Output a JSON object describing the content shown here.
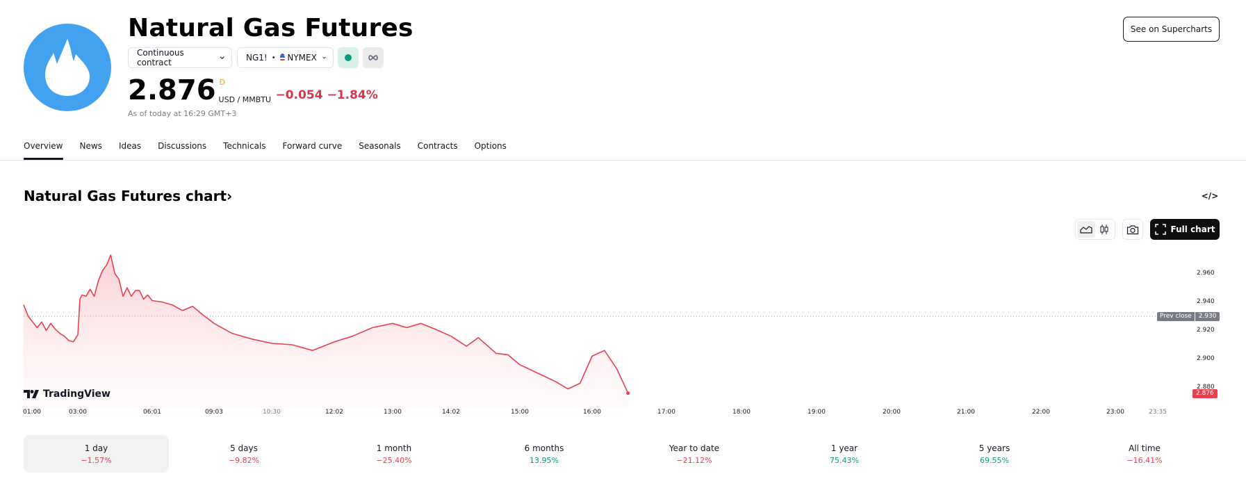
{
  "header": {
    "logo_icon": "flame-icon",
    "logo_color": "#42a2f0",
    "title": "Natural Gas Futures",
    "contract_select": "Continuous contract",
    "symbol": "NG1!",
    "separator": "•",
    "exchange": "NYMEX",
    "exchange_flag": "us-flag-icon",
    "status_icon": "market-open-dot",
    "infinity_icon": "infinity-icon",
    "supercharts_button": "See on Supercharts"
  },
  "quote": {
    "price": "2.876",
    "delay_marker": "D",
    "unit": "USD / MMBTU",
    "change": "−0.054",
    "change_percent": "−1.84%",
    "as_of": "As of today at 16:29 GMT+3",
    "change_color": "#d1394b"
  },
  "tabs": [
    {
      "label": "Overview",
      "active": true
    },
    {
      "label": "News"
    },
    {
      "label": "Ideas"
    },
    {
      "label": "Discussions"
    },
    {
      "label": "Technicals"
    },
    {
      "label": "Forward curve"
    },
    {
      "label": "Seasonals"
    },
    {
      "label": "Contracts"
    },
    {
      "label": "Options"
    }
  ],
  "chart_section": {
    "title": "Natural Gas Futures chart",
    "title_arrow": "›",
    "embed_icon": "</>",
    "area_style_icon": "area-chart-icon",
    "candles_style_icon": "candlestick-icon",
    "snapshot_icon": "camera-icon",
    "full_chart_button": "Full chart",
    "watermark": "TradingView",
    "prev_close_label": "Prev close",
    "prev_close_value": "2.930",
    "last_value": "2.876"
  },
  "chart_data": {
    "type": "area",
    "title": "Natural Gas Futures chart",
    "xlabel": "",
    "ylabel": "USD / MMBTU",
    "x_tick_labels": [
      "01:00",
      "03:00",
      "06:01",
      "09:03",
      "10:30",
      "12:02",
      "13:00",
      "14:02",
      "15:00",
      "16:00",
      "17:00",
      "18:00",
      "19:00",
      "20:00",
      "21:00",
      "22:00",
      "23:00",
      "23:35"
    ],
    "y_tick_labels": [
      "2.960",
      "2.940",
      "2.920",
      "2.900",
      "2.880"
    ],
    "ylim": [
      2.865,
      2.978
    ],
    "grid": false,
    "legend": "none",
    "reference_line": {
      "label": "Prev close",
      "value": 2.93,
      "style": "dotted"
    },
    "last_value_label": {
      "value": 2.876,
      "color": "#e8404f"
    },
    "line_color": "#e8404f",
    "series": [
      {
        "name": "NG1!",
        "x": [
          "01:00",
          "01:10",
          "01:20",
          "01:30",
          "01:40",
          "01:50",
          "02:00",
          "02:10",
          "02:20",
          "02:30",
          "02:40",
          "02:50",
          "03:00",
          "03:05",
          "03:10",
          "03:20",
          "03:30",
          "03:40",
          "03:50",
          "04:00",
          "04:10",
          "04:20",
          "04:30",
          "04:40",
          "04:50",
          "05:00",
          "05:10",
          "05:20",
          "05:30",
          "05:40",
          "05:50",
          "06:01",
          "06:30",
          "07:00",
          "07:30",
          "08:00",
          "08:30",
          "09:03",
          "09:30",
          "10:00",
          "10:30",
          "11:00",
          "11:30",
          "12:02",
          "12:20",
          "12:40",
          "13:00",
          "13:15",
          "13:30",
          "13:45",
          "14:02",
          "14:15",
          "14:25",
          "14:40",
          "14:50",
          "15:00",
          "15:10",
          "15:20",
          "15:30",
          "15:40",
          "15:50",
          "16:00",
          "16:10",
          "16:20",
          "16:29"
        ],
        "values": [
          2.938,
          2.93,
          2.926,
          2.922,
          2.926,
          2.92,
          2.925,
          2.921,
          2.918,
          2.916,
          2.913,
          2.912,
          2.917,
          2.942,
          2.945,
          2.944,
          2.949,
          2.944,
          2.955,
          2.962,
          2.966,
          2.973,
          2.96,
          2.956,
          2.944,
          2.95,
          2.944,
          2.948,
          2.948,
          2.942,
          2.945,
          2.941,
          2.94,
          2.938,
          2.934,
          2.937,
          2.931,
          2.925,
          2.918,
          2.914,
          2.911,
          2.91,
          2.906,
          2.912,
          2.916,
          2.922,
          2.925,
          2.922,
          2.925,
          2.921,
          2.916,
          2.909,
          2.915,
          2.904,
          2.903,
          2.896,
          2.892,
          2.888,
          2.884,
          2.879,
          2.883,
          2.902,
          2.906,
          2.893,
          2.876
        ]
      }
    ]
  },
  "periods": [
    {
      "label": "1 day",
      "value": "−1.57%",
      "direction": "neg",
      "active": true
    },
    {
      "label": "5 days",
      "value": "−9.82%",
      "direction": "neg"
    },
    {
      "label": "1 month",
      "value": "−25.40%",
      "direction": "neg"
    },
    {
      "label": "6 months",
      "value": "13.95%",
      "direction": "pos"
    },
    {
      "label": "Year to date",
      "value": "−21.12%",
      "direction": "neg"
    },
    {
      "label": "1 year",
      "value": "75.43%",
      "direction": "pos"
    },
    {
      "label": "5 years",
      "value": "69.55%",
      "direction": "pos"
    },
    {
      "label": "All time",
      "value": "−16.41%",
      "direction": "neg"
    }
  ]
}
